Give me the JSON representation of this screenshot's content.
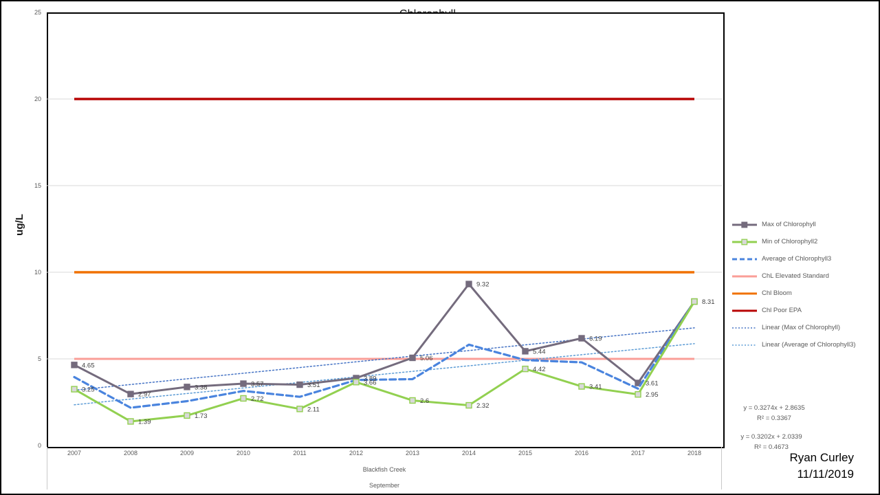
{
  "title": "Chlorophyll",
  "y_axis": {
    "label": "ug/L",
    "ticks": [
      0,
      5,
      10,
      15,
      20,
      25
    ],
    "max": 25
  },
  "x_axis": {
    "group_label_1": "Blackfish Creek",
    "group_label_2": "September"
  },
  "chart_data": {
    "type": "line",
    "title": "Chlorophyll",
    "ylabel": "ug/L",
    "xlabel_lines": [
      "Blackfish Creek",
      "September"
    ],
    "ylim": [
      0,
      25
    ],
    "grid": "horizontal",
    "gridline_values": [
      5,
      10,
      15,
      20
    ],
    "legend_position": "right",
    "categories": [
      "2007",
      "2008",
      "2009",
      "2010",
      "2011",
      "2012",
      "2013",
      "2014",
      "2015",
      "2016",
      "2017",
      "2018"
    ],
    "series": [
      {
        "name": "Max of Chlorophyll",
        "color": "#746B7D",
        "style": "solid-marker",
        "marker_fill": "#746B7D",
        "marker_stroke": "#746B7D",
        "width": 3,
        "values": [
          4.65,
          2.97,
          3.38,
          3.57,
          3.51,
          3.89,
          5.06,
          9.32,
          5.44,
          6.19,
          3.61,
          8.31
        ],
        "labels": [
          "4.65",
          "2.97",
          "3.38",
          "3.57",
          "3.51",
          "3.89",
          "5.06",
          "9.32",
          "5.44",
          "6.19",
          "3.61",
          null
        ]
      },
      {
        "name": "Min of Chlorophyll2",
        "color": "#92D050",
        "style": "solid-marker",
        "marker_fill": "#D9D9D9",
        "marker_stroke": "#92D050",
        "width": 3,
        "values": [
          3.25,
          1.39,
          1.73,
          2.72,
          2.11,
          3.66,
          2.6,
          2.32,
          4.42,
          3.41,
          2.95,
          8.31
        ],
        "labels": [
          "3.25",
          "1.39",
          "1.73",
          "2.72",
          "2.11",
          "3.66",
          "2.6",
          "2.32",
          "4.42",
          "3.41",
          "2.95",
          "8.31"
        ]
      },
      {
        "name": "Average of Chlorophyll3",
        "color": "#4A84DE",
        "style": "dashed",
        "width": 3.2,
        "values": [
          3.95,
          2.18,
          2.56,
          3.15,
          2.81,
          3.78,
          3.83,
          5.82,
          4.93,
          4.8,
          3.28,
          8.31
        ],
        "labels": null
      },
      {
        "name": "ChL Elevated Standard",
        "color": "#FA9E97",
        "style": "solid",
        "width": 3,
        "values": [
          5,
          5,
          5,
          5,
          5,
          5,
          5,
          5,
          5,
          5,
          5,
          5
        ],
        "labels": null
      },
      {
        "name": "Chl Bloom",
        "color": "#F07100",
        "style": "solid",
        "width": 3.5,
        "values": [
          10,
          10,
          10,
          10,
          10,
          10,
          10,
          10,
          10,
          10,
          10,
          10
        ],
        "labels": null
      },
      {
        "name": "Chl Poor EPA",
        "color": "#B80505",
        "style": "solid",
        "width": 3.5,
        "values": [
          20,
          20,
          20,
          20,
          20,
          20,
          20,
          20,
          20,
          20,
          20,
          20
        ],
        "labels": null
      },
      {
        "name": "Linear (Max of Chlorophyll)",
        "color": "#4472C4",
        "style": "dotted",
        "width": 1.5,
        "equation": "y = 0.3274x + 2.8635",
        "r_squared": "R² = 0.3367",
        "values": [
          3.19,
          3.52,
          3.85,
          4.17,
          4.5,
          4.83,
          5.16,
          5.48,
          5.81,
          6.14,
          6.47,
          6.79
        ],
        "labels": null
      },
      {
        "name": "Linear (Average of Chlorophyll3)",
        "color": "#5B9BD5",
        "style": "dotted",
        "width": 1.5,
        "equation": "y = 0.3202x + 2.0339",
        "r_squared": "R² = 0.4673",
        "values": [
          2.35,
          2.68,
          3.0,
          3.32,
          3.64,
          3.96,
          4.28,
          4.6,
          4.92,
          5.24,
          5.56,
          5.88
        ],
        "labels": null
      }
    ]
  },
  "annotations": {
    "trend1_eq": "y = 0.3274x + 2.8635",
    "trend1_r2": "R² = 0.3367",
    "trend2_eq": "y = 0.3202x + 2.0339",
    "trend2_r2": "R² = 0.4673"
  },
  "credit": {
    "line1": "Ryan Curley",
    "line2": "11/11/2019"
  }
}
